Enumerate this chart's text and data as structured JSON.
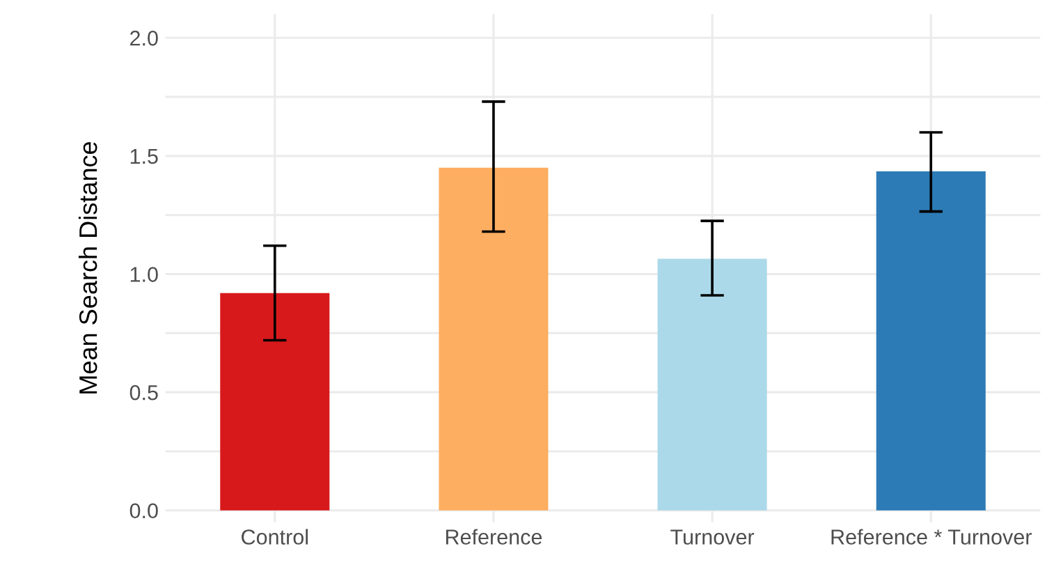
{
  "chart_data": {
    "type": "bar",
    "ylabel": "Mean Search Distance",
    "categories": [
      "Control",
      "Reference",
      "Turnover",
      "Reference * Turnover"
    ],
    "values": [
      0.92,
      1.45,
      1.065,
      1.435
    ],
    "colors": [
      "#d7191c",
      "#fdae61",
      "#abd9e9",
      "#2c7bb6"
    ],
    "errors": [
      [
        0.72,
        1.12
      ],
      [
        1.18,
        1.73
      ],
      [
        0.91,
        1.225
      ],
      [
        1.265,
        1.6
      ]
    ],
    "ylim": [
      -0.05,
      2.1
    ],
    "yticks": [
      {
        "value": 0.0,
        "label": "0.0"
      },
      {
        "value": 0.25,
        "label": null
      },
      {
        "value": 0.5,
        "label": "0.5"
      },
      {
        "value": 0.75,
        "label": null
      },
      {
        "value": 1.0,
        "label": "1.0"
      },
      {
        "value": 1.25,
        "label": null
      },
      {
        "value": 1.5,
        "label": "1.5"
      },
      {
        "value": 1.75,
        "label": null
      },
      {
        "value": 2.0,
        "label": "2.0"
      }
    ],
    "grid": true
  }
}
